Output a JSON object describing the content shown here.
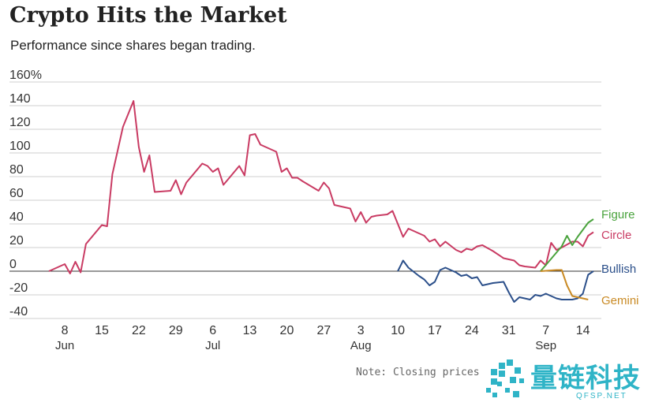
{
  "page": {
    "title": "Crypto Hits the Market",
    "subtitle": "Performance since shares began trading.",
    "note": "Note: Closing prices",
    "watermark": {
      "name": "量链科技",
      "domain": "QFSP.NET",
      "color": "#2fb4c7"
    }
  },
  "chart_data": {
    "type": "line",
    "title": "Crypto Hits the Market",
    "subtitle": "Performance since shares began trading.",
    "xlabel": "",
    "ylabel": "",
    "ylim": [
      -40,
      160
    ],
    "yticks": [
      160,
      140,
      120,
      100,
      80,
      60,
      40,
      20,
      0,
      -20,
      -40
    ],
    "ytick_labels": [
      "160%",
      "140",
      "120",
      "100",
      "80",
      "60",
      "40",
      "20",
      "0",
      "-20",
      "-40"
    ],
    "x_unit": "day index (June 5 = 0)",
    "xlim": [
      0,
      103
    ],
    "xticks": [
      {
        "x": 3,
        "label": "8",
        "month": "Jun"
      },
      {
        "x": 10,
        "label": "15",
        "month": ""
      },
      {
        "x": 17,
        "label": "22",
        "month": ""
      },
      {
        "x": 24,
        "label": "29",
        "month": ""
      },
      {
        "x": 31,
        "label": "6",
        "month": "Jul"
      },
      {
        "x": 38,
        "label": "13",
        "month": ""
      },
      {
        "x": 45,
        "label": "20",
        "month": ""
      },
      {
        "x": 52,
        "label": "27",
        "month": ""
      },
      {
        "x": 59,
        "label": "3",
        "month": "Aug"
      },
      {
        "x": 66,
        "label": "10",
        "month": ""
      },
      {
        "x": 73,
        "label": "17",
        "month": ""
      },
      {
        "x": 80,
        "label": "24",
        "month": ""
      },
      {
        "x": 87,
        "label": "31",
        "month": ""
      },
      {
        "x": 94,
        "label": "7",
        "month": "Sep"
      },
      {
        "x": 101,
        "label": "14",
        "month": ""
      }
    ],
    "grid": true,
    "series": [
      {
        "name": "Circle",
        "color": "#c93b63",
        "points": [
          [
            0,
            0
          ],
          [
            3,
            6
          ],
          [
            4,
            -2
          ],
          [
            5,
            8
          ],
          [
            6,
            -1
          ],
          [
            7,
            23
          ],
          [
            10,
            39
          ],
          [
            11,
            38
          ],
          [
            12,
            82
          ],
          [
            14,
            122
          ],
          [
            16,
            144
          ],
          [
            17,
            105
          ],
          [
            18,
            84
          ],
          [
            19,
            98
          ],
          [
            20,
            67
          ],
          [
            23,
            68
          ],
          [
            24,
            77
          ],
          [
            25,
            65
          ],
          [
            26,
            75
          ],
          [
            29,
            91
          ],
          [
            30,
            89
          ],
          [
            31,
            84
          ],
          [
            32,
            87
          ],
          [
            33,
            73
          ],
          [
            36,
            89
          ],
          [
            37,
            81
          ],
          [
            38,
            115
          ],
          [
            39,
            116
          ],
          [
            40,
            107
          ],
          [
            42,
            103
          ],
          [
            43,
            101
          ],
          [
            44,
            84
          ],
          [
            45,
            87
          ],
          [
            46,
            79
          ],
          [
            47,
            79
          ],
          [
            48,
            76
          ],
          [
            51,
            68
          ],
          [
            52,
            75
          ],
          [
            53,
            70
          ],
          [
            54,
            56
          ],
          [
            57,
            53
          ],
          [
            58,
            42
          ],
          [
            59,
            50
          ],
          [
            60,
            41
          ],
          [
            61,
            46
          ],
          [
            62,
            47
          ],
          [
            64,
            48
          ],
          [
            65,
            51
          ],
          [
            66,
            40
          ],
          [
            67,
            29
          ],
          [
            68,
            36
          ],
          [
            71,
            30
          ],
          [
            72,
            25
          ],
          [
            73,
            27
          ],
          [
            74,
            21
          ],
          [
            75,
            25
          ],
          [
            77,
            18
          ],
          [
            78,
            16
          ],
          [
            79,
            19
          ],
          [
            80,
            18
          ],
          [
            81,
            21
          ],
          [
            82,
            22
          ],
          [
            84,
            17
          ],
          [
            86,
            11
          ],
          [
            88,
            9
          ],
          [
            89,
            5
          ],
          [
            90,
            4
          ],
          [
            92,
            3
          ],
          [
            93,
            9
          ],
          [
            94,
            5
          ],
          [
            95,
            24
          ],
          [
            96,
            18
          ],
          [
            97,
            20
          ],
          [
            99,
            25
          ],
          [
            100,
            25
          ],
          [
            101,
            21
          ],
          [
            102,
            30
          ],
          [
            103,
            33
          ]
        ]
      },
      {
        "name": "Bullish",
        "color": "#2b4f8a",
        "points": [
          [
            66,
            0
          ],
          [
            67,
            9
          ],
          [
            68,
            3
          ],
          [
            70,
            -4
          ],
          [
            71,
            -7
          ],
          [
            72,
            -12
          ],
          [
            73,
            -9
          ],
          [
            74,
            1
          ],
          [
            75,
            3
          ],
          [
            77,
            -1
          ],
          [
            78,
            -4
          ],
          [
            79,
            -3
          ],
          [
            80,
            -6
          ],
          [
            81,
            -5
          ],
          [
            82,
            -12
          ],
          [
            84,
            -10
          ],
          [
            86,
            -9
          ],
          [
            87,
            -18
          ],
          [
            88,
            -26
          ],
          [
            89,
            -22
          ],
          [
            91,
            -24
          ],
          [
            92,
            -20
          ],
          [
            93,
            -21
          ],
          [
            94,
            -19
          ],
          [
            95,
            -21
          ],
          [
            96,
            -23
          ],
          [
            97,
            -24
          ],
          [
            99,
            -24
          ],
          [
            100,
            -23
          ],
          [
            101,
            -19
          ],
          [
            102,
            -3
          ],
          [
            103,
            0
          ]
        ]
      },
      {
        "name": "Figure",
        "color": "#4aa33d",
        "points": [
          [
            93,
            0
          ],
          [
            97,
            21
          ],
          [
            98,
            30
          ],
          [
            99,
            22
          ],
          [
            100,
            29
          ],
          [
            101,
            35
          ],
          [
            102,
            41
          ],
          [
            103,
            44
          ]
        ]
      },
      {
        "name": "Gemini",
        "color": "#c98a24",
        "points": [
          [
            93,
            0
          ],
          [
            96,
            1
          ],
          [
            97,
            1
          ],
          [
            98,
            -12
          ],
          [
            99,
            -21
          ],
          [
            100,
            -22
          ],
          [
            101,
            -23
          ],
          [
            102,
            -24
          ]
        ]
      }
    ],
    "legend": "direct labels at right end of each line"
  }
}
